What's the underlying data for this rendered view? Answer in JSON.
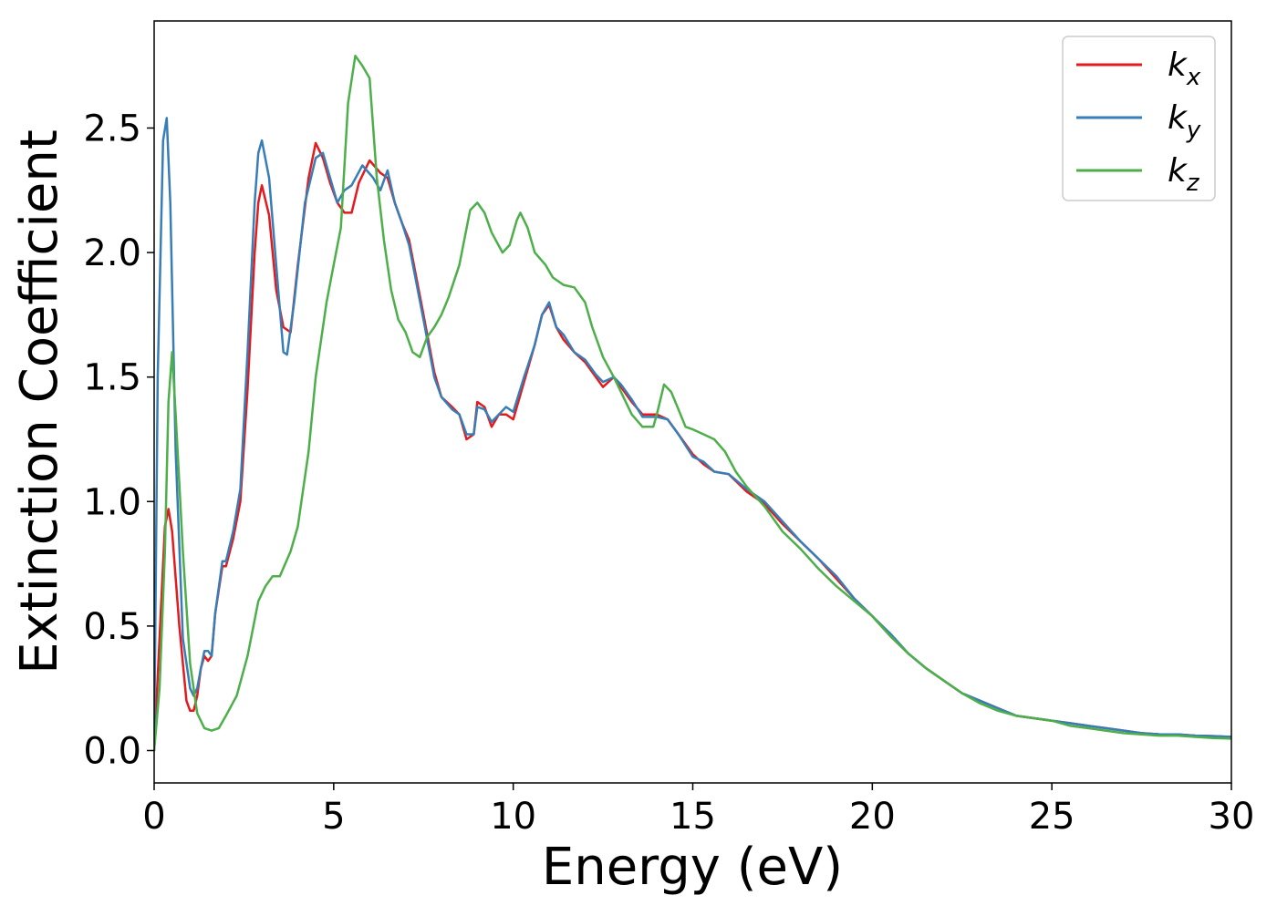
{
  "chart_data": {
    "type": "line",
    "title": "",
    "xlabel": "Energy (eV)",
    "ylabel": "Extinction Coefficient",
    "xlim": [
      0,
      30
    ],
    "ylim": [
      -0.13,
      2.93
    ],
    "xticks": [
      0,
      5,
      10,
      15,
      20,
      25,
      30
    ],
    "xtick_labels": [
      "0",
      "5",
      "10",
      "15",
      "20",
      "25",
      "30"
    ],
    "yticks": [
      0.0,
      0.5,
      1.0,
      1.5,
      2.0,
      2.5
    ],
    "ytick_labels": [
      "0.0",
      "0.5",
      "1.0",
      "1.5",
      "2.0",
      "2.5"
    ],
    "grid": false,
    "legend_position": "top-right",
    "series": [
      {
        "name": "k",
        "subscript": "x",
        "color": "#e41a1c",
        "points": [
          [
            0,
            0
          ],
          [
            0.15,
            0.45
          ],
          [
            0.3,
            0.9
          ],
          [
            0.4,
            0.97
          ],
          [
            0.5,
            0.88
          ],
          [
            0.7,
            0.5
          ],
          [
            0.9,
            0.2
          ],
          [
            1.0,
            0.16
          ],
          [
            1.1,
            0.16
          ],
          [
            1.2,
            0.22
          ],
          [
            1.3,
            0.33
          ],
          [
            1.4,
            0.38
          ],
          [
            1.5,
            0.36
          ],
          [
            1.6,
            0.38
          ],
          [
            1.7,
            0.55
          ],
          [
            1.9,
            0.74
          ],
          [
            2.0,
            0.74
          ],
          [
            2.2,
            0.85
          ],
          [
            2.4,
            1.0
          ],
          [
            2.6,
            1.45
          ],
          [
            2.8,
            2.0
          ],
          [
            2.9,
            2.2
          ],
          [
            3.0,
            2.27
          ],
          [
            3.2,
            2.15
          ],
          [
            3.4,
            1.85
          ],
          [
            3.6,
            1.7
          ],
          [
            3.8,
            1.68
          ],
          [
            4.0,
            1.95
          ],
          [
            4.3,
            2.3
          ],
          [
            4.5,
            2.44
          ],
          [
            4.7,
            2.38
          ],
          [
            4.9,
            2.28
          ],
          [
            5.1,
            2.2
          ],
          [
            5.3,
            2.16
          ],
          [
            5.5,
            2.16
          ],
          [
            5.7,
            2.28
          ],
          [
            6.0,
            2.37
          ],
          [
            6.3,
            2.32
          ],
          [
            6.5,
            2.3
          ],
          [
            6.7,
            2.2
          ],
          [
            6.9,
            2.12
          ],
          [
            7.1,
            2.05
          ],
          [
            7.3,
            1.9
          ],
          [
            7.5,
            1.75
          ],
          [
            7.8,
            1.52
          ],
          [
            8.0,
            1.42
          ],
          [
            8.3,
            1.38
          ],
          [
            8.5,
            1.35
          ],
          [
            8.7,
            1.25
          ],
          [
            8.9,
            1.27
          ],
          [
            9.0,
            1.4
          ],
          [
            9.2,
            1.38
          ],
          [
            9.4,
            1.3
          ],
          [
            9.6,
            1.35
          ],
          [
            9.8,
            1.35
          ],
          [
            10.0,
            1.33
          ],
          [
            10.3,
            1.48
          ],
          [
            10.6,
            1.63
          ],
          [
            10.8,
            1.75
          ],
          [
            11.0,
            1.79
          ],
          [
            11.2,
            1.7
          ],
          [
            11.4,
            1.65
          ],
          [
            11.7,
            1.6
          ],
          [
            12.0,
            1.56
          ],
          [
            12.3,
            1.5
          ],
          [
            12.5,
            1.46
          ],
          [
            12.8,
            1.5
          ],
          [
            13.0,
            1.46
          ],
          [
            13.3,
            1.4
          ],
          [
            13.6,
            1.35
          ],
          [
            14.0,
            1.35
          ],
          [
            14.3,
            1.33
          ],
          [
            14.6,
            1.27
          ],
          [
            15.0,
            1.19
          ],
          [
            15.3,
            1.15
          ],
          [
            15.6,
            1.12
          ],
          [
            16.0,
            1.11
          ],
          [
            16.5,
            1.04
          ],
          [
            17.0,
            0.99
          ],
          [
            17.5,
            0.91
          ],
          [
            18.0,
            0.84
          ],
          [
            18.5,
            0.77
          ],
          [
            19.0,
            0.69
          ],
          [
            19.5,
            0.61
          ],
          [
            20.0,
            0.54
          ],
          [
            20.5,
            0.46
          ],
          [
            21.0,
            0.39
          ],
          [
            21.5,
            0.33
          ],
          [
            22.0,
            0.28
          ],
          [
            22.5,
            0.23
          ],
          [
            23.0,
            0.2
          ],
          [
            23.5,
            0.17
          ],
          [
            24.0,
            0.14
          ],
          [
            24.5,
            0.13
          ],
          [
            25.0,
            0.12
          ],
          [
            25.5,
            0.11
          ],
          [
            26.0,
            0.1
          ],
          [
            26.5,
            0.09
          ],
          [
            27.0,
            0.08
          ],
          [
            27.5,
            0.07
          ],
          [
            28.0,
            0.065
          ],
          [
            28.5,
            0.065
          ],
          [
            29.0,
            0.06
          ],
          [
            29.5,
            0.058
          ],
          [
            30.0,
            0.055
          ]
        ]
      },
      {
        "name": "k",
        "subscript": "y",
        "color": "#377eb8",
        "points": [
          [
            0,
            0
          ],
          [
            0.1,
            1.5
          ],
          [
            0.25,
            2.45
          ],
          [
            0.35,
            2.54
          ],
          [
            0.45,
            2.2
          ],
          [
            0.6,
            1.2
          ],
          [
            0.8,
            0.45
          ],
          [
            1.0,
            0.25
          ],
          [
            1.1,
            0.22
          ],
          [
            1.2,
            0.25
          ],
          [
            1.3,
            0.33
          ],
          [
            1.4,
            0.4
          ],
          [
            1.5,
            0.4
          ],
          [
            1.6,
            0.38
          ],
          [
            1.7,
            0.55
          ],
          [
            1.9,
            0.76
          ],
          [
            2.0,
            0.76
          ],
          [
            2.2,
            0.88
          ],
          [
            2.4,
            1.05
          ],
          [
            2.6,
            1.6
          ],
          [
            2.8,
            2.2
          ],
          [
            2.9,
            2.4
          ],
          [
            3.0,
            2.45
          ],
          [
            3.2,
            2.3
          ],
          [
            3.4,
            1.95
          ],
          [
            3.6,
            1.6
          ],
          [
            3.7,
            1.59
          ],
          [
            3.9,
            1.8
          ],
          [
            4.2,
            2.2
          ],
          [
            4.5,
            2.38
          ],
          [
            4.7,
            2.4
          ],
          [
            4.9,
            2.3
          ],
          [
            5.1,
            2.2
          ],
          [
            5.3,
            2.25
          ],
          [
            5.5,
            2.27
          ],
          [
            5.8,
            2.35
          ],
          [
            6.1,
            2.3
          ],
          [
            6.3,
            2.25
          ],
          [
            6.5,
            2.33
          ],
          [
            6.7,
            2.2
          ],
          [
            6.9,
            2.12
          ],
          [
            7.1,
            2.03
          ],
          [
            7.3,
            1.88
          ],
          [
            7.5,
            1.73
          ],
          [
            7.8,
            1.5
          ],
          [
            8.0,
            1.42
          ],
          [
            8.3,
            1.37
          ],
          [
            8.5,
            1.35
          ],
          [
            8.7,
            1.27
          ],
          [
            8.9,
            1.27
          ],
          [
            9.0,
            1.38
          ],
          [
            9.2,
            1.37
          ],
          [
            9.4,
            1.32
          ],
          [
            9.6,
            1.35
          ],
          [
            9.8,
            1.38
          ],
          [
            10.0,
            1.36
          ],
          [
            10.3,
            1.5
          ],
          [
            10.6,
            1.63
          ],
          [
            10.8,
            1.75
          ],
          [
            11.0,
            1.8
          ],
          [
            11.2,
            1.7
          ],
          [
            11.4,
            1.67
          ],
          [
            11.7,
            1.6
          ],
          [
            12.0,
            1.57
          ],
          [
            12.3,
            1.51
          ],
          [
            12.5,
            1.48
          ],
          [
            12.8,
            1.5
          ],
          [
            13.0,
            1.47
          ],
          [
            13.3,
            1.41
          ],
          [
            13.6,
            1.34
          ],
          [
            14.0,
            1.34
          ],
          [
            14.3,
            1.33
          ],
          [
            14.6,
            1.27
          ],
          [
            15.0,
            1.18
          ],
          [
            15.3,
            1.16
          ],
          [
            15.6,
            1.12
          ],
          [
            16.0,
            1.11
          ],
          [
            16.5,
            1.05
          ],
          [
            17.0,
            1.0
          ],
          [
            17.5,
            0.92
          ],
          [
            18.0,
            0.84
          ],
          [
            18.5,
            0.77
          ],
          [
            19.0,
            0.7
          ],
          [
            19.5,
            0.61
          ],
          [
            20.0,
            0.54
          ],
          [
            20.5,
            0.47
          ],
          [
            21.0,
            0.39
          ],
          [
            21.5,
            0.33
          ],
          [
            22.0,
            0.28
          ],
          [
            22.5,
            0.23
          ],
          [
            23.0,
            0.2
          ],
          [
            23.5,
            0.17
          ],
          [
            24.0,
            0.14
          ],
          [
            24.5,
            0.13
          ],
          [
            25.0,
            0.12
          ],
          [
            25.5,
            0.11
          ],
          [
            26.0,
            0.1
          ],
          [
            26.5,
            0.09
          ],
          [
            27.0,
            0.08
          ],
          [
            27.5,
            0.07
          ],
          [
            28.0,
            0.065
          ],
          [
            28.5,
            0.065
          ],
          [
            29.0,
            0.06
          ],
          [
            29.5,
            0.058
          ],
          [
            30.0,
            0.055
          ]
        ]
      },
      {
        "name": "k",
        "subscript": "z",
        "color": "#4daf4a",
        "points": [
          [
            0,
            0
          ],
          [
            0.15,
            0.25
          ],
          [
            0.3,
            0.8
          ],
          [
            0.4,
            1.4
          ],
          [
            0.5,
            1.6
          ],
          [
            0.6,
            1.35
          ],
          [
            0.8,
            0.8
          ],
          [
            1.0,
            0.35
          ],
          [
            1.2,
            0.15
          ],
          [
            1.4,
            0.09
          ],
          [
            1.6,
            0.08
          ],
          [
            1.8,
            0.09
          ],
          [
            2.0,
            0.14
          ],
          [
            2.3,
            0.22
          ],
          [
            2.6,
            0.38
          ],
          [
            2.9,
            0.6
          ],
          [
            3.1,
            0.66
          ],
          [
            3.3,
            0.7
          ],
          [
            3.5,
            0.7
          ],
          [
            3.8,
            0.8
          ],
          [
            4.0,
            0.9
          ],
          [
            4.3,
            1.2
          ],
          [
            4.5,
            1.5
          ],
          [
            4.8,
            1.8
          ],
          [
            5.0,
            1.95
          ],
          [
            5.2,
            2.1
          ],
          [
            5.4,
            2.6
          ],
          [
            5.6,
            2.79
          ],
          [
            5.8,
            2.75
          ],
          [
            6.0,
            2.7
          ],
          [
            6.2,
            2.3
          ],
          [
            6.4,
            2.05
          ],
          [
            6.6,
            1.85
          ],
          [
            6.8,
            1.73
          ],
          [
            7.0,
            1.68
          ],
          [
            7.2,
            1.6
          ],
          [
            7.4,
            1.58
          ],
          [
            7.6,
            1.66
          ],
          [
            7.8,
            1.7
          ],
          [
            8.0,
            1.75
          ],
          [
            8.2,
            1.82
          ],
          [
            8.5,
            1.95
          ],
          [
            8.8,
            2.17
          ],
          [
            9.0,
            2.2
          ],
          [
            9.2,
            2.16
          ],
          [
            9.4,
            2.08
          ],
          [
            9.7,
            2.0
          ],
          [
            9.9,
            2.03
          ],
          [
            10.1,
            2.13
          ],
          [
            10.2,
            2.16
          ],
          [
            10.4,
            2.1
          ],
          [
            10.6,
            2.0
          ],
          [
            10.9,
            1.95
          ],
          [
            11.1,
            1.9
          ],
          [
            11.4,
            1.87
          ],
          [
            11.7,
            1.86
          ],
          [
            12.0,
            1.8
          ],
          [
            12.2,
            1.7
          ],
          [
            12.5,
            1.58
          ],
          [
            12.8,
            1.5
          ],
          [
            13.0,
            1.44
          ],
          [
            13.3,
            1.35
          ],
          [
            13.6,
            1.3
          ],
          [
            13.9,
            1.3
          ],
          [
            14.0,
            1.35
          ],
          [
            14.2,
            1.47
          ],
          [
            14.4,
            1.44
          ],
          [
            14.6,
            1.37
          ],
          [
            14.8,
            1.3
          ],
          [
            15.0,
            1.29
          ],
          [
            15.3,
            1.27
          ],
          [
            15.6,
            1.25
          ],
          [
            15.9,
            1.2
          ],
          [
            16.2,
            1.12
          ],
          [
            16.5,
            1.06
          ],
          [
            17.0,
            0.98
          ],
          [
            17.5,
            0.88
          ],
          [
            18.0,
            0.81
          ],
          [
            18.5,
            0.73
          ],
          [
            19.0,
            0.66
          ],
          [
            19.5,
            0.6
          ],
          [
            20.0,
            0.54
          ],
          [
            20.5,
            0.46
          ],
          [
            21.0,
            0.39
          ],
          [
            21.5,
            0.33
          ],
          [
            22.0,
            0.28
          ],
          [
            22.5,
            0.23
          ],
          [
            23.0,
            0.19
          ],
          [
            23.5,
            0.16
          ],
          [
            24.0,
            0.14
          ],
          [
            24.5,
            0.13
          ],
          [
            25.0,
            0.12
          ],
          [
            25.5,
            0.1
          ],
          [
            26.0,
            0.09
          ],
          [
            26.5,
            0.08
          ],
          [
            27.0,
            0.07
          ],
          [
            27.5,
            0.065
          ],
          [
            28.0,
            0.06
          ],
          [
            28.5,
            0.06
          ],
          [
            29.0,
            0.055
          ],
          [
            29.5,
            0.05
          ],
          [
            30.0,
            0.048
          ]
        ]
      }
    ]
  }
}
